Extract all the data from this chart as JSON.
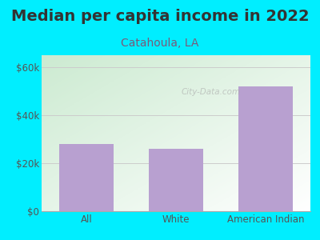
{
  "title": "Median per capita income in 2022",
  "subtitle": "Catahoula, LA",
  "categories": [
    "All",
    "White",
    "American Indian"
  ],
  "values": [
    28000,
    26000,
    52000
  ],
  "bar_color": "#b8a0d0",
  "background_color": "#00eeff",
  "plot_bg_topleft": "#cce8d0",
  "plot_bg_bottomright": "#ffffff",
  "title_color": "#333333",
  "subtitle_color": "#7a5a7a",
  "tick_color": "#555555",
  "ylim": [
    0,
    65000
  ],
  "yticks": [
    0,
    20000,
    40000,
    60000
  ],
  "ytick_labels": [
    "$0",
    "$20k",
    "$40k",
    "$60k"
  ],
  "watermark": "City-Data.com",
  "title_fontsize": 14,
  "subtitle_fontsize": 10,
  "grid_color": "#cccccc"
}
